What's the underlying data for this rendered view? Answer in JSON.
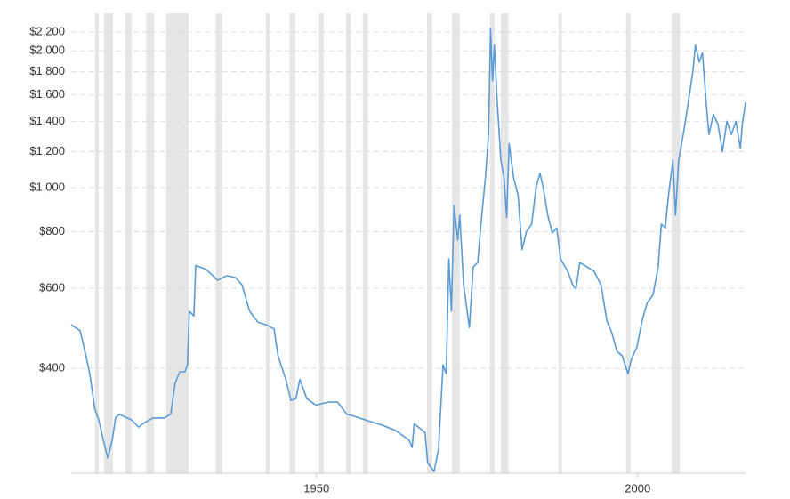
{
  "chart_data": {
    "type": "line",
    "log_scale": true,
    "grid": true,
    "color": "#5b9bd5",
    "band_color": "#e6e6e6",
    "xlim": [
      1911.8,
      2016.8
    ],
    "xticks": [
      1950,
      2000
    ],
    "ylim": [
      235,
      2420
    ],
    "yticks": [
      {
        "value": 400,
        "label": "$400"
      },
      {
        "value": 600,
        "label": "$600"
      },
      {
        "value": 800,
        "label": "$800"
      },
      {
        "value": 1000,
        "label": "$1,000"
      },
      {
        "value": 1200,
        "label": "$1,200"
      },
      {
        "value": 1400,
        "label": "$1,400"
      },
      {
        "value": 1600,
        "label": "$1,600"
      },
      {
        "value": 1800,
        "label": "$1,800"
      },
      {
        "value": 2000,
        "label": "$2,000"
      },
      {
        "value": 2200,
        "label": "$2,200"
      }
    ],
    "recessions": [
      [
        1915.5,
        1916.1
      ],
      [
        1916.9,
        1918.3
      ],
      [
        1920.2,
        1921.2
      ],
      [
        1923.5,
        1924.7
      ],
      [
        1926.6,
        1930.1
      ],
      [
        1934.3,
        1935.3
      ],
      [
        1942.1,
        1942.7
      ],
      [
        1945.8,
        1946.7
      ],
      [
        1950.4,
        1951.1
      ],
      [
        1954.6,
        1955.3
      ],
      [
        1957.2,
        1958.0
      ],
      [
        1967.2,
        1968.0
      ],
      [
        1971.1,
        1972.3
      ],
      [
        1977.0,
        1977.7
      ],
      [
        1978.7,
        1979.9
      ],
      [
        1987.7,
        1988.2
      ],
      [
        1998.2,
        1998.9
      ],
      [
        2005.3,
        2006.6
      ]
    ],
    "x": [
      1911.8,
      1913.2,
      1914.1,
      1914.7,
      1915.5,
      1916.1,
      1916.8,
      1917.5,
      1918.2,
      1918.7,
      1919.3,
      1920.1,
      1921.2,
      1922.3,
      1923.1,
      1924.5,
      1926.3,
      1927.3,
      1928.0,
      1928.7,
      1929.5,
      1929.9,
      1930.2,
      1930.9,
      1931.2,
      1932.8,
      1934.6,
      1936.0,
      1937.4,
      1938.4,
      1939.6,
      1940.9,
      1942.2,
      1943.4,
      1944.0,
      1945.3,
      1946.0,
      1946.8,
      1947.4,
      1948.5,
      1949.9,
      1951.9,
      1953.3,
      1954.7,
      1956.1,
      1958.2,
      1960.2,
      1962.3,
      1964.4,
      1964.9,
      1965.2,
      1966.9,
      1967.3,
      1968.3,
      1969.0,
      1969.7,
      1970.2,
      1970.6,
      1971.0,
      1971.4,
      1972.0,
      1972.3,
      1972.9,
      1973.8,
      1974.4,
      1975.1,
      1975.6,
      1976.3,
      1976.8,
      1977.1,
      1977.4,
      1977.7,
      1978.1,
      1978.7,
      1979.2,
      1979.6,
      1980.0,
      1980.7,
      1981.4,
      1982.0,
      1982.7,
      1983.5,
      1984.2,
      1984.8,
      1985.3,
      1986.0,
      1986.7,
      1987.4,
      1988.0,
      1989.1,
      1989.9,
      1990.4,
      1991.0,
      1992.1,
      1993.2,
      1994.3,
      1995.2,
      1996.0,
      1996.8,
      1997.6,
      1998.5,
      1999.0,
      1999.9,
      2000.7,
      2001.5,
      2002.4,
      2003.2,
      2003.7,
      2004.3,
      2004.8,
      2005.5,
      2005.9,
      2006.4,
      2007.1,
      2007.6,
      2008.2,
      2008.6,
      2009.0,
      2009.6,
      2010.1,
      2010.7,
      2011.1,
      2011.8,
      2012.5,
      2013.2,
      2013.9,
      2014.6,
      2015.3,
      2016.0,
      2016.3,
      2016.8
    ],
    "values": [
      499,
      484,
      426,
      389,
      325,
      308,
      278,
      254,
      278,
      311,
      317,
      313,
      308,
      297,
      303,
      311,
      311,
      317,
      371,
      393,
      393,
      407,
      534,
      522,
      674,
      661,
      625,
      640,
      634,
      611,
      534,
      505,
      499,
      488,
      426,
      375,
      340,
      343,
      378,
      343,
      332,
      337,
      337,
      317,
      313,
      306,
      300,
      292,
      278,
      268,
      302,
      289,
      248,
      237,
      265,
      407,
      389,
      697,
      534,
      913,
      766,
      870,
      611,
      492,
      669,
      684,
      831,
      1050,
      1310,
      2240,
      1720,
      2060,
      1580,
      1150,
      1050,
      860,
      1250,
      1050,
      960,
      730,
      800,
      831,
      1005,
      1075,
      1000,
      870,
      795,
      815,
      697,
      655,
      611,
      598,
      684,
      669,
      655,
      611,
      510,
      478,
      436,
      426,
      389,
      418,
      446,
      510,
      558,
      580,
      669,
      831,
      815,
      960,
      1150,
      870,
      1150,
      1310,
      1450,
      1650,
      1800,
      2060,
      1890,
      1980,
      1520,
      1310,
      1450,
      1380,
      1200,
      1400,
      1310,
      1400,
      1220,
      1380,
      1540
    ]
  }
}
